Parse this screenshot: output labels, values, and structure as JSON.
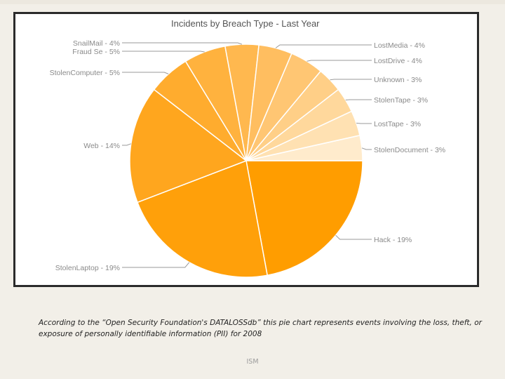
{
  "chart_data": {
    "type": "pie",
    "title": "Incidents by Breach Type - Last Year",
    "slices": [
      {
        "label": "Hack - 19%",
        "value": 19,
        "color": "#ff9d00"
      },
      {
        "label": "StolenLaptop - 19%",
        "value": 19,
        "color": "#ffa00a"
      },
      {
        "label": "Web - 14%",
        "value": 14,
        "color": "#ffa61e"
      },
      {
        "label": "StolenComputer - 5%",
        "value": 5,
        "color": "#ffac2e"
      },
      {
        "label": "Fraud Se - 5%",
        "value": 5,
        "color": "#ffb23e"
      },
      {
        "label": "SnailMail - 4%",
        "value": 4,
        "color": "#ffb84f"
      },
      {
        "label": "LostMedia - 4%",
        "value": 4,
        "color": "#ffbe60"
      },
      {
        "label": "LostDrive - 4%",
        "value": 4,
        "color": "#ffc673"
      },
      {
        "label": "Unknown - 3%",
        "value": 3,
        "color": "#ffcf87"
      },
      {
        "label": "StolenTape - 3%",
        "value": 3,
        "color": "#ffd89c"
      },
      {
        "label": "LostTape - 3%",
        "value": 3,
        "color": "#ffe1b2"
      },
      {
        "label": "StolenDocument - 3%",
        "value": 3,
        "color": "#ffebcc"
      }
    ]
  },
  "caption": "According to the “Open Security Foundation's DATALOSSdb” this pie chart represents events involving the loss, theft, or exposure of personally identifiable information (PII) for 2008",
  "footer": "ISM"
}
